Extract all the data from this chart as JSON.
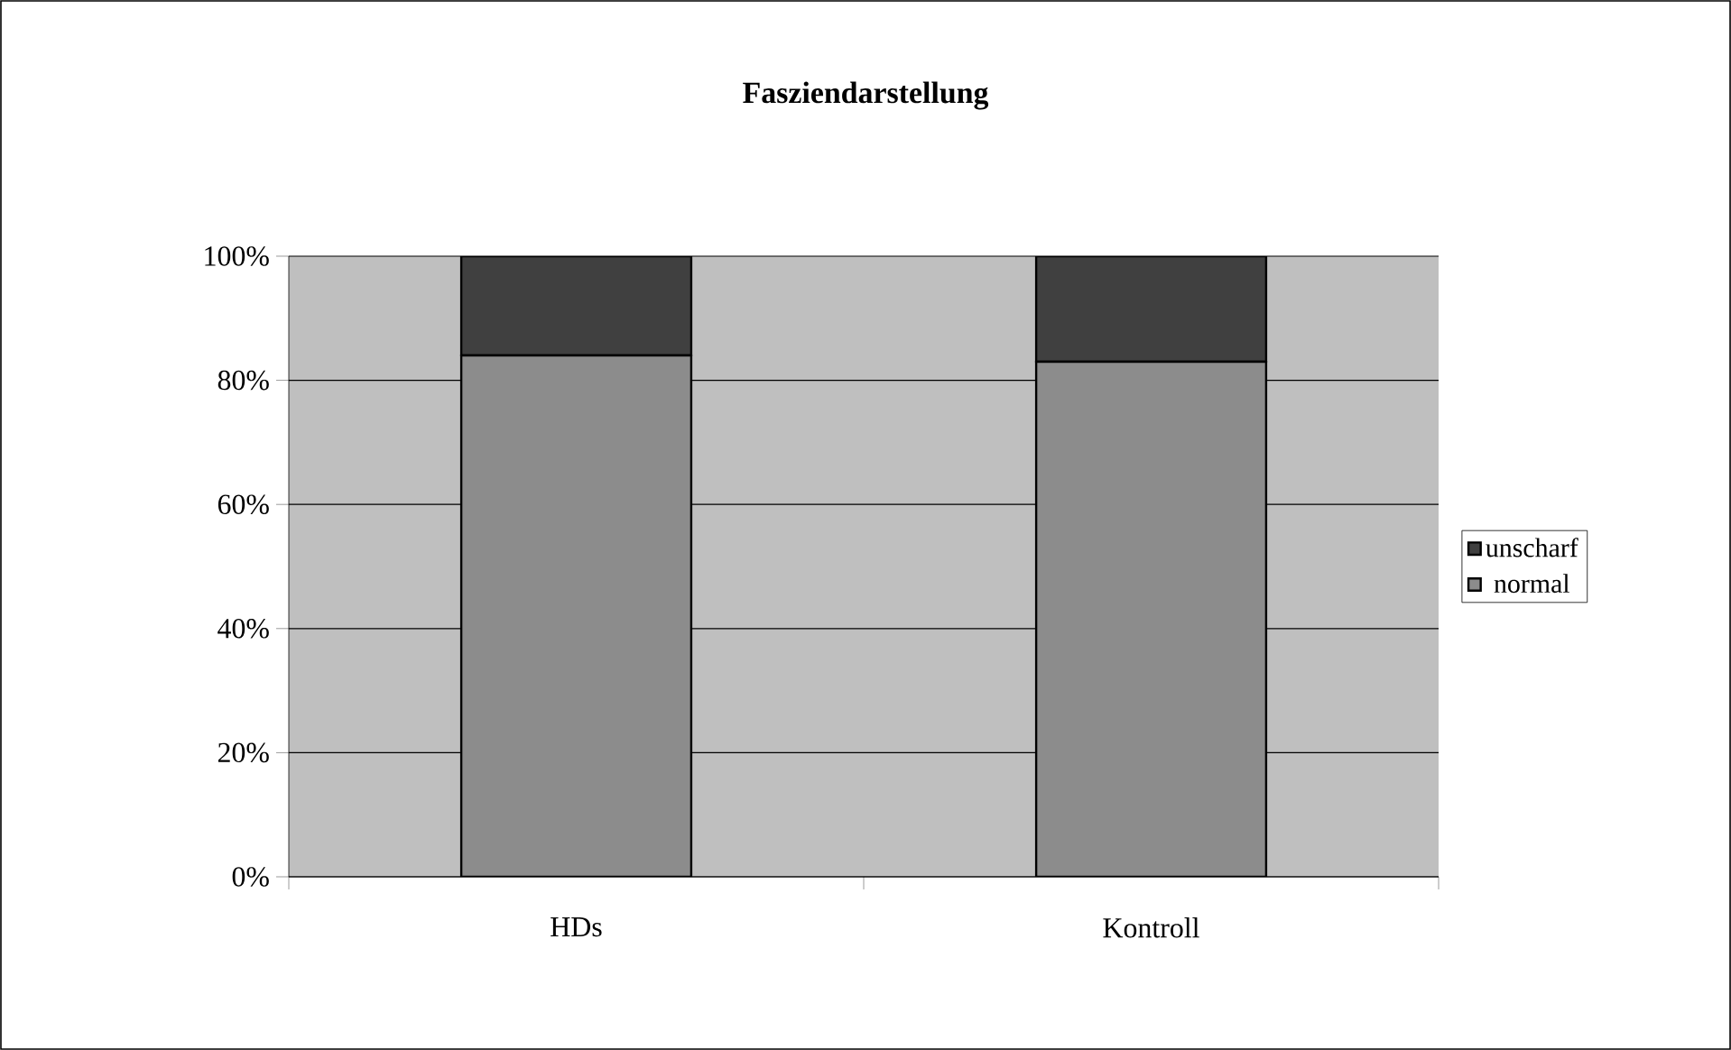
{
  "chart_data": {
    "type": "bar",
    "title": "Fasziendarstellung",
    "stacked": true,
    "categories": [
      "HDs",
      "Kontroll"
    ],
    "series": [
      {
        "name": "normal",
        "color": "#8c8c8c",
        "values": [
          84,
          83
        ]
      },
      {
        "name": "unscharf",
        "color": "#404040",
        "values": [
          16,
          17
        ]
      }
    ],
    "ylim": [
      0,
      100
    ],
    "yticks": [
      {
        "value": 0,
        "label": "0%"
      },
      {
        "value": 20,
        "label": "20%"
      },
      {
        "value": 40,
        "label": "40%"
      },
      {
        "value": 60,
        "label": "60%"
      },
      {
        "value": 80,
        "label": "80%"
      },
      {
        "value": 100,
        "label": "100%"
      }
    ],
    "grid": "y",
    "legend": "right"
  }
}
